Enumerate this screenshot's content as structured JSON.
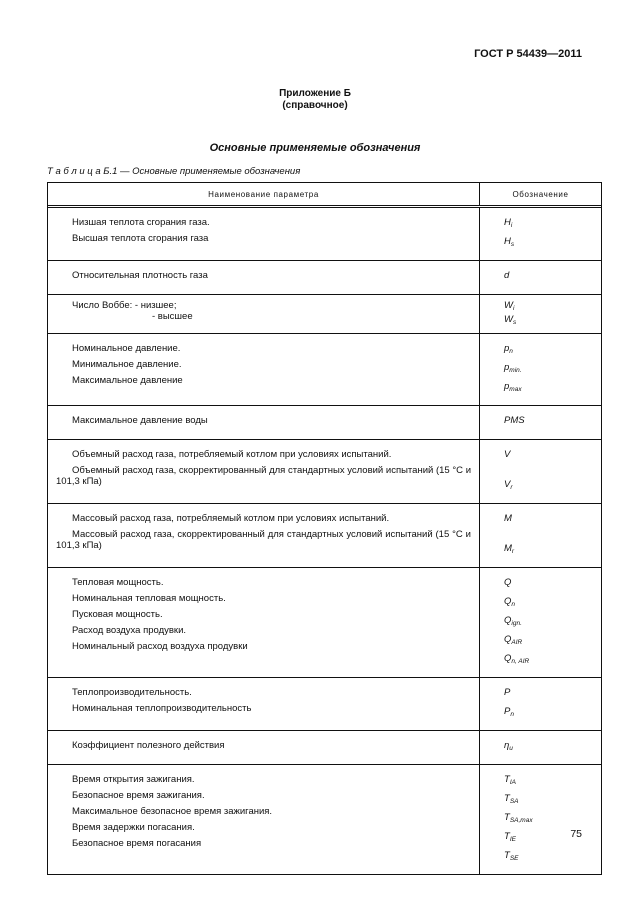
{
  "header": {
    "standard": "ГОСТ Р 54439—2011"
  },
  "annex": {
    "title": "Приложение Б",
    "type": "(справочное)"
  },
  "section_title": "Основные применяемые обозначения",
  "table": {
    "caption_prefix": "Т а б л и ц а",
    "caption_number": "Б.1 —",
    "caption_text": "Основные применяемые обозначения",
    "columns": [
      "Наименование параметра",
      "Обозначение"
    ],
    "groups": [
      {
        "rows": [
          {
            "name": "Низшая теплота сгорания газа.",
            "sym": "H",
            "sub": "i"
          },
          {
            "name": "Высшая теплота сгорания газа",
            "sym": "H",
            "sub": "s"
          }
        ]
      },
      {
        "rows": [
          {
            "name": "Относительная плотность газа",
            "sym": "d",
            "sub": ""
          }
        ]
      },
      {
        "rows": [
          {
            "name": "Число Воббе: - низшее;",
            "sym": "W",
            "sub": "i"
          },
          {
            "name": "- высшее",
            "sym": "W",
            "sub": "s"
          }
        ]
      },
      {
        "rows": [
          {
            "name": "Номинальное давление.",
            "sym": "p",
            "sub": "n"
          },
          {
            "name": "Минимальное давление.",
            "sym": "p",
            "sub": "min."
          },
          {
            "name": "Максимальное давление",
            "sym": "p",
            "sub": "max"
          }
        ]
      },
      {
        "rows": [
          {
            "name": "Максимальное давление воды",
            "sym": "PMS",
            "sub": ""
          }
        ]
      },
      {
        "rows": [
          {
            "name": "Объемный расход газа, потребляемый котлом при условиях испытаний.",
            "sym": "V",
            "sub": ""
          },
          {
            "name": "Объемный расход газа, скорректированный для стандартных условий испытаний (15 °С и 101,3 кПа)",
            "sym": "V",
            "sub": "r"
          }
        ]
      },
      {
        "rows": [
          {
            "name": "Массовый расход газа, потребляемый котлом при условиях испытаний.",
            "sym": "M",
            "sub": ""
          },
          {
            "name": "Массовый расход газа, скорректированный для стандартных условий испытаний (15 °С и 101,3 кПа)",
            "sym": "M",
            "sub": "r"
          }
        ]
      },
      {
        "rows": [
          {
            "name": "Тепловая мощность.",
            "sym": "Q",
            "sub": ""
          },
          {
            "name": "Номинальная тепловая мощность.",
            "sym": "Q",
            "sub": "n"
          },
          {
            "name": "Пусковая мощность.",
            "sym": "Q",
            "sub": "ign."
          },
          {
            "name": "Расход воздуха продувки.",
            "sym": "Q",
            "sub": "AIR"
          },
          {
            "name": "Номинальный расход воздуха продувки",
            "sym": "Q",
            "sub": "n, AIR"
          }
        ]
      },
      {
        "rows": [
          {
            "name": "Теплопроизводительность.",
            "sym": "P",
            "sub": ""
          },
          {
            "name": "Номинальная теплопроизводительность",
            "sym": "P",
            "sub": "n"
          }
        ]
      },
      {
        "rows": [
          {
            "name": "Коэффициент полезного действия",
            "sym": "η",
            "sub": "u"
          }
        ]
      },
      {
        "rows": [
          {
            "name": "Время открытия зажигания.",
            "sym": "T",
            "sub": "IA"
          },
          {
            "name": "Безопасное время зажигания.",
            "sym": "T",
            "sub": "SA"
          },
          {
            "name": "Максимальное безопасное время зажигания.",
            "sym": "T",
            "sub": "SA,max"
          },
          {
            "name": "Время задержки погасания.",
            "sym": "T",
            "sub": "IE"
          },
          {
            "name": "Безопасное время погасания",
            "sym": "T",
            "sub": "SE"
          }
        ]
      }
    ]
  },
  "footer": {
    "page_number": "75"
  }
}
